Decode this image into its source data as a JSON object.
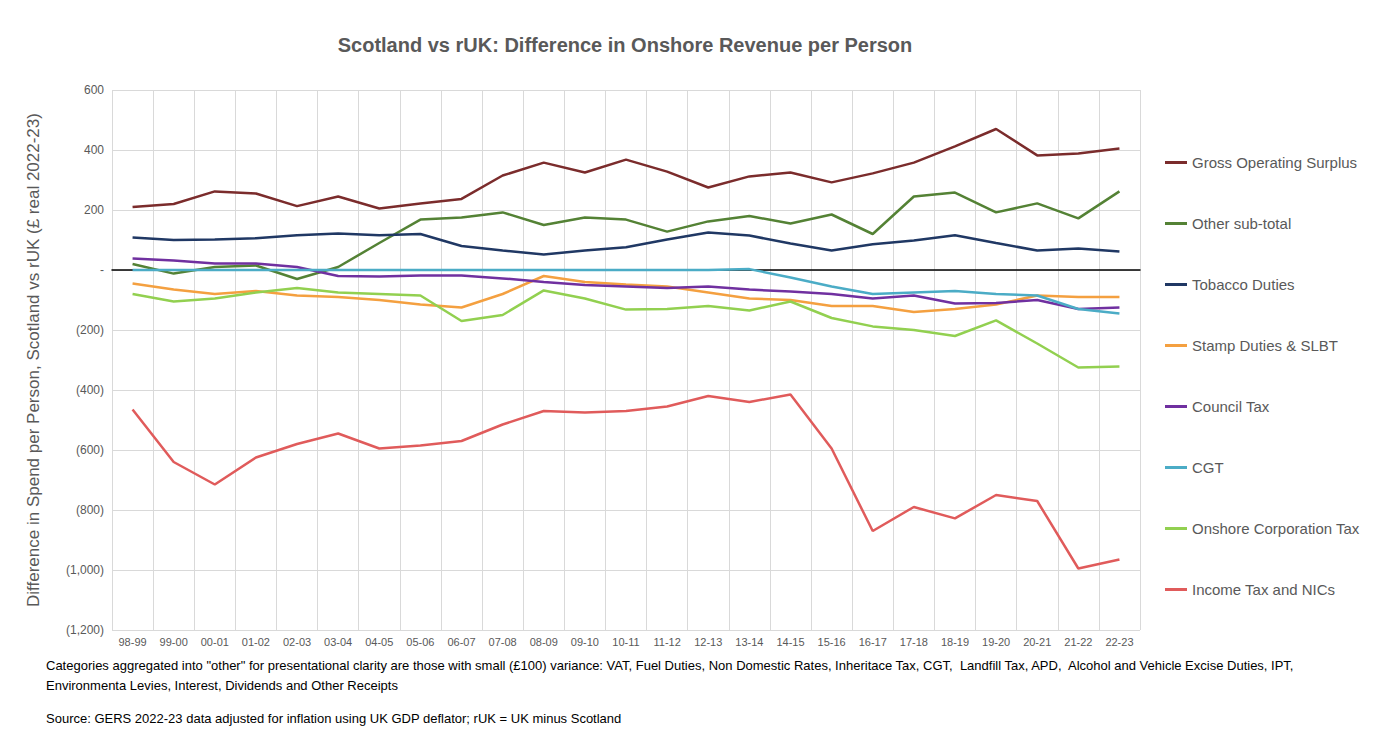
{
  "chart_data": {
    "type": "line",
    "title": "Scotland vs rUK: Difference in Onshore Revenue per Person",
    "y_label": "Difference in Spend per Person, Scotland vs rUK (£ real 2022-23)",
    "notes": "Categories aggregated into \"other\" for presentational clarity are those with small (£100) variance: VAT, Fuel Duties, Non Domestic Rates, Inheritace Tax, CGT,  Landfill Tax, APD,  Alcohol and Vehicle Excise Duties, IPT, Environmenta Levies, Interest, Dividends and Other Receipts",
    "source": "Source: GERS 2022-23 data adjusted for inflation using UK GDP deflator; rUK = UK minus Scotland",
    "categories": [
      "98-99",
      "99-00",
      "00-01",
      "01-02",
      "02-03",
      "03-04",
      "04-05",
      "05-06",
      "06-07",
      "07-08",
      "08-09",
      "09-10",
      "10-11",
      "11-12",
      "12-13",
      "13-14",
      "14-15",
      "15-16",
      "16-17",
      "17-18",
      "18-19",
      "19-20",
      "20-21",
      "21-22",
      "22-23"
    ],
    "ylim": [
      -1200,
      600
    ],
    "yticks": [
      {
        "value": -1200,
        "label": "(1,200)"
      },
      {
        "value": -1000,
        "label": "(1,000)"
      },
      {
        "value": -800,
        "label": "(800)"
      },
      {
        "value": -600,
        "label": "(600)"
      },
      {
        "value": -400,
        "label": "(400)"
      },
      {
        "value": -200,
        "label": "(200)"
      },
      {
        "value": 0,
        "label": "-"
      },
      200,
      400,
      600
    ],
    "grid": true,
    "legend": "right",
    "series": [
      {
        "name": "Gross Operating Surplus",
        "color": "#7b2c2c",
        "values": [
          210,
          220,
          262,
          255,
          213,
          245,
          205,
          222,
          237,
          315,
          358,
          325,
          368,
          328,
          275,
          312,
          325,
          292,
          322,
          358,
          412,
          470,
          382,
          388,
          405
        ]
      },
      {
        "name": "Other sub-total",
        "color": "#548235",
        "values": [
          20,
          -12,
          10,
          15,
          -30,
          10,
          90,
          168,
          175,
          192,
          150,
          175,
          168,
          128,
          162,
          180,
          155,
          185,
          120,
          245,
          258,
          192,
          222,
          172,
          262
        ]
      },
      {
        "name": "Tobacco Duties",
        "color": "#203864",
        "values": [
          108,
          100,
          102,
          106,
          116,
          122,
          116,
          120,
          80,
          65,
          52,
          65,
          76,
          102,
          125,
          115,
          88,
          65,
          86,
          98,
          116,
          90,
          65,
          72,
          62
        ]
      },
      {
        "name": "Stamp Duties & SLBT",
        "color": "#f4a040",
        "values": [
          -45,
          -65,
          -80,
          -70,
          -85,
          -90,
          -100,
          -115,
          -125,
          -80,
          -20,
          -40,
          -48,
          -55,
          -75,
          -95,
          -100,
          -120,
          -120,
          -140,
          -130,
          -115,
          -85,
          -90,
          -90
        ]
      },
      {
        "name": "Council Tax",
        "color": "#7030a0",
        "values": [
          38,
          32,
          22,
          22,
          10,
          -20,
          -22,
          -18,
          -18,
          -28,
          -40,
          -50,
          -55,
          -60,
          -55,
          -65,
          -72,
          -80,
          -95,
          -85,
          -112,
          -110,
          -100,
          -130,
          -125
        ]
      },
      {
        "name": "CGT",
        "color": "#4bacc6",
        "values": [
          0,
          0,
          0,
          0,
          0,
          0,
          0,
          0,
          0,
          0,
          0,
          0,
          0,
          0,
          0,
          3,
          -25,
          -55,
          -80,
          -75,
          -70,
          -80,
          -85,
          -130,
          -145
        ]
      },
      {
        "name": "Onshore Corporation Tax",
        "color": "#92d050",
        "values": [
          -80,
          -105,
          -95,
          -75,
          -60,
          -75,
          -80,
          -85,
          -170,
          -150,
          -68,
          -95,
          -132,
          -130,
          -120,
          -135,
          -105,
          -160,
          -188,
          -200,
          -220,
          -168,
          -245,
          -325,
          -322
        ]
      },
      {
        "name": "Income Tax and NICs",
        "color": "#e05b5b",
        "values": [
          -465,
          -640,
          -715,
          -625,
          -580,
          -545,
          -595,
          -585,
          -570,
          -515,
          -470,
          -475,
          -470,
          -455,
          -420,
          -440,
          -415,
          -595,
          -870,
          -790,
          -828,
          -750,
          -770,
          -995,
          -965
        ]
      }
    ]
  }
}
